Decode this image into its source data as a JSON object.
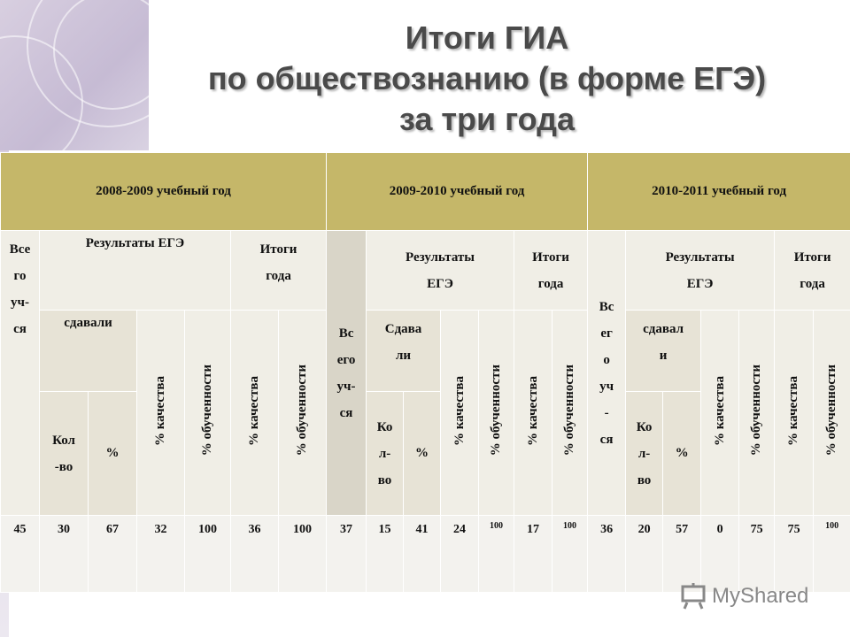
{
  "title": {
    "line1": "Итоги ГИА",
    "line2": "по обществознанию (в форме ЕГЭ)",
    "line3": "за три года"
  },
  "table": {
    "years": [
      "2008-2009 учебный год",
      "2009-2010 учебный год",
      "2010-2011 учебный год"
    ],
    "headers": {
      "total_y1": [
        "Все",
        "го",
        "уч-",
        "ся"
      ],
      "total_y2": [
        "Вс",
        "его",
        "уч-",
        "ся"
      ],
      "total_y3": [
        "Вс",
        "ег",
        "о",
        "уч",
        "-",
        "ся"
      ],
      "results_y1": "Результаты ЕГЭ",
      "results_y2": [
        "Результаты",
        "ЕГЭ"
      ],
      "results_y3": [
        "Результаты",
        "ЕГЭ"
      ],
      "itogi_y1": [
        "Итоги",
        "года"
      ],
      "itogi_y2": [
        "Итоги",
        "года"
      ],
      "itogi_y3": [
        "Итоги",
        "года"
      ],
      "sdavali_y1": "сдавали",
      "sdavali_y2": [
        "Сдава",
        "ли"
      ],
      "sdavali_y3": [
        "сдавал",
        "и"
      ],
      "kolvo_y1": [
        "Кол",
        "-во"
      ],
      "kolvo_y2": [
        "Ко",
        "л-",
        "во"
      ],
      "kolvo_y3": [
        "Ко",
        "л-",
        "во"
      ],
      "percent": "%",
      "quality": "% качества",
      "learning": "% обученности"
    },
    "values": [
      "45",
      "30",
      "67",
      "32",
      "100",
      "36",
      "100",
      "37",
      "15",
      "41",
      "24",
      "100",
      "17",
      "100",
      "36",
      "20",
      "57",
      "0",
      "75",
      "75",
      "100"
    ]
  },
  "watermark": {
    "text": "MyShared"
  },
  "colors": {
    "year_header": "#c5b769",
    "cell_light": "#f0eee6",
    "title_text": "#4a4a4a"
  }
}
